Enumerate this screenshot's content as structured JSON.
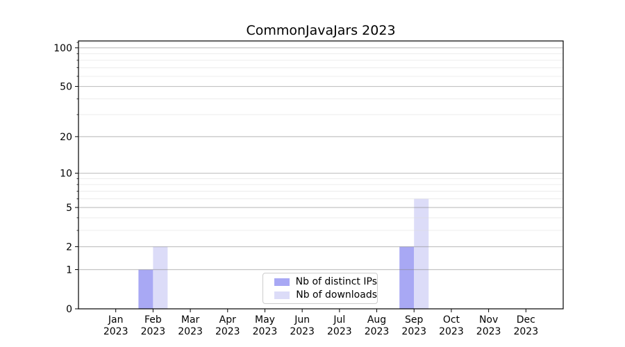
{
  "chart_data": {
    "type": "bar",
    "title": "CommonJavaJars 2023",
    "months": [
      "Jan",
      "Feb",
      "Mar",
      "Apr",
      "May",
      "Jun",
      "Jul",
      "Aug",
      "Sep",
      "Oct",
      "Nov",
      "Dec"
    ],
    "year": "2023",
    "series": [
      {
        "name": "Nb of distinct IPs",
        "color": "#a8a8f4",
        "values": [
          0,
          1,
          0,
          0,
          0,
          0,
          0,
          0,
          2,
          0,
          0,
          0
        ]
      },
      {
        "name": "Nb of downloads",
        "color": "#dcdcf8",
        "values": [
          0,
          2,
          0,
          0,
          0,
          0,
          0,
          0,
          6,
          0,
          0,
          0
        ]
      }
    ],
    "yscale": "log1p",
    "ylim": [
      0,
      113
    ],
    "yticks": [
      0,
      1,
      2,
      5,
      10,
      20,
      50,
      100
    ],
    "minor_yticks": [
      3,
      4,
      6,
      7,
      8,
      9,
      30,
      40,
      60,
      70,
      80,
      90,
      110
    ],
    "grid": "horizontal",
    "legend_position": "lower center"
  },
  "palette": {
    "axis": "#000000",
    "text": "#000000",
    "grid_major": "#888888",
    "grid_minor": "#dddddd",
    "legend_border": "#cccccc"
  }
}
